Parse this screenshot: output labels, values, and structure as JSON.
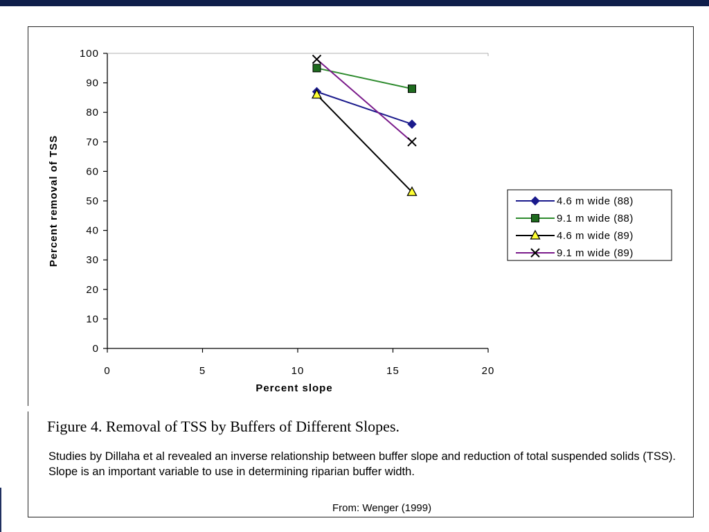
{
  "chart_data": {
    "type": "line",
    "xlabel": "Percent  slope",
    "ylabel": "Percent  removal  of  TSS",
    "xlim": [
      0,
      20
    ],
    "ylim": [
      0,
      100
    ],
    "x_ticks": [
      0,
      5,
      10,
      15,
      20
    ],
    "y_ticks": [
      0,
      10,
      20,
      30,
      40,
      50,
      60,
      70,
      80,
      90,
      100
    ],
    "grid": false,
    "legend_position": "right",
    "series": [
      {
        "name": "4.6  m  wide  (88)",
        "marker": "diamond",
        "color": "#1a1a8c",
        "marker_fill": "#1a1a8c",
        "points": [
          [
            11,
            87
          ],
          [
            16,
            76
          ]
        ]
      },
      {
        "name": "9.1  m  wide  (88)",
        "marker": "square",
        "color": "#2e8b2e",
        "marker_fill": "#1e6b1e",
        "points": [
          [
            11,
            95
          ],
          [
            16,
            88
          ]
        ]
      },
      {
        "name": "4.6  m  wide  (89)",
        "marker": "triangle",
        "color": "#000000",
        "marker_fill": "#ffff33",
        "points": [
          [
            11,
            86
          ],
          [
            16,
            53
          ]
        ]
      },
      {
        "name": "9.1  m  wide  (89)",
        "marker": "x",
        "color": "#7a1a8a",
        "marker_fill": "#000000",
        "points": [
          [
            11,
            98
          ],
          [
            16,
            70
          ]
        ]
      }
    ]
  },
  "figure": {
    "title": "Figure 4. Removal of TSS by Buffers of Different Slopes.",
    "caption": "Studies by Dillaha et al revealed an inverse relationship between buffer slope and reduction of total suspended solids (TSS).  Slope is an important variable to use in determining riparian buffer width.",
    "source": "From: Wenger (1999)"
  }
}
